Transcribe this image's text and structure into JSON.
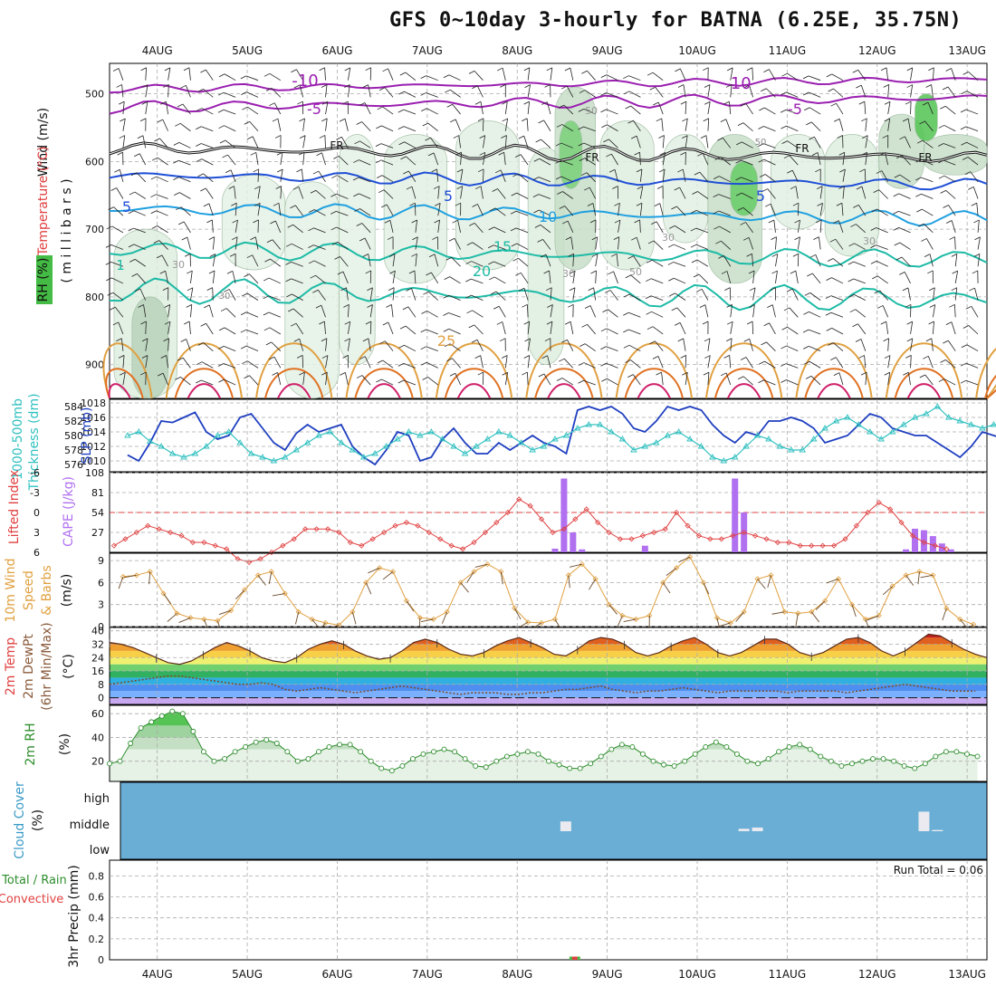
{
  "title": "GFS 0~10day 3-hourly for BATNA (6.25E, 35.75N)",
  "colors": {
    "purple": "#9a1fb0",
    "black": "#111111",
    "blue": "#1f4fd6",
    "lightblue": "#1fa0e0",
    "teal": "#1dbba6",
    "orange": "#e0a040",
    "darkorange": "#e07020",
    "magenta": "#d0206a",
    "cloud": "#6aaed6",
    "rhgreen": "#2c8c2c",
    "cape": "#b070f0",
    "lifted": "#e04040",
    "wind": "#e0a040",
    "slp": "#1f3fc0",
    "thick": "#30c0c0"
  },
  "chart_data": [
    {
      "panel": "upper-air",
      "type": "line",
      "ylabel_parts": [
        "Wind (m/s)",
        "Temperature (°C)",
        "RH (%)"
      ],
      "ylabel_unit": "( m i l l i b a r s )",
      "ylim": [
        950,
        455
      ],
      "yticks": [
        500,
        600,
        700,
        800,
        900
      ],
      "x": [
        "4AUG",
        "5AUG",
        "6AUG",
        "7AUG",
        "8AUG",
        "9AUG",
        "10AUG",
        "11AUG",
        "12AUG",
        "13AUG"
      ],
      "isotherm_labels": [
        "-10",
        "-10",
        "-5",
        "-5",
        "FR",
        "FR",
        "FR",
        "FR",
        "5",
        "5",
        "5",
        "10",
        "15",
        "20",
        "25",
        "1",
        "30",
        "30",
        "30",
        "30",
        "50",
        "50",
        "5"
      ],
      "rh_contour_labels": [
        "30",
        "50"
      ]
    },
    {
      "panel": "slp-thickness",
      "type": "line",
      "ylabel_left": "1000-500mb Thickness (dm)",
      "ylabel_right": "SLP (mb)",
      "thickness_ticks": [
        576,
        578,
        580,
        582,
        584
      ],
      "slp_ticks": [
        1010,
        1012,
        1014,
        1016,
        1018
      ],
      "series": [
        {
          "name": "SLP (mb)",
          "values": [
            1010.8,
            1010.0,
            1012.5,
            1015.5,
            1015.3,
            1016.0,
            1016.7,
            1014.0,
            1013.0,
            1013.5,
            1016.0,
            1016.5,
            1014.5,
            1012.5,
            1011.5,
            1013.8,
            1015.0,
            1014.0,
            1014.5,
            1015.0,
            1012.0,
            1010.5,
            1009.5,
            1011.5,
            1014.0,
            1013.5,
            1010.0,
            1010.5,
            1013.0,
            1014.5,
            1012.5,
            1011.0,
            1011.0,
            1012.5,
            1011.5,
            1012.5,
            1013.5,
            1012.5,
            1012.0,
            1011.0,
            1017.0,
            1017.5,
            1017.0,
            1017.5,
            1016.5,
            1014.5,
            1014.0,
            1015.5,
            1017.5,
            1017.0,
            1017.5,
            1017.0,
            1015.0,
            1013.5,
            1012.5,
            1014.0,
            1013.5,
            1015.5,
            1015.5,
            1016.0,
            1015.5,
            1014.5,
            1012.5,
            1013.0,
            1013.5,
            1015.0,
            1016.5,
            1016.0,
            1014.5,
            1014.0,
            1013.5,
            1013.5,
            1012.5,
            1011.5,
            1010.5,
            1012.0,
            1014.0,
            1013.5,
            1013.0,
            1013.0
          ]
        },
        {
          "name": "1000-500mb Thickness (dm)",
          "values": [
            580.0,
            580.5,
            579.2,
            578.5,
            577.5,
            577.0,
            577.5,
            578.5,
            580.0,
            580.5,
            579.0,
            577.5,
            577.0,
            576.5,
            577.0,
            578.0,
            579.0,
            580.0,
            580.5,
            579.0,
            578.0,
            577.0,
            577.5,
            578.5,
            579.5,
            580.5,
            580.0,
            580.5,
            579.5,
            578.5,
            577.5,
            578.5,
            579.5,
            580.5,
            580.0,
            579.0,
            578.0,
            578.5,
            579.5,
            580.0,
            581.0,
            581.5,
            581.5,
            580.5,
            579.5,
            578.0,
            578.5,
            579.0,
            580.0,
            580.5,
            579.5,
            578.5,
            577.0,
            576.5,
            577.0,
            578.5,
            580.0,
            579.5,
            578.5,
            578.0,
            578.0,
            579.5,
            581.0,
            582.0,
            582.5,
            581.5,
            580.5,
            579.5,
            580.5,
            581.5,
            582.5,
            583.0,
            584.0,
            582.5,
            582.0,
            581.5,
            581.0,
            581.5,
            581.5,
            581.5
          ]
        }
      ]
    },
    {
      "panel": "instability",
      "type": "bar",
      "ylabel_left": "Lifted Index",
      "ylabel_right": "CAPE (J/kg)",
      "lifted_ticks": [
        "-6",
        "-3",
        "0",
        "3",
        "6"
      ],
      "cape_ticks": [
        "27",
        "54",
        "81",
        "108"
      ],
      "series": [
        {
          "name": "Lifted Index",
          "values": [
            5.0,
            4.0,
            3.0,
            2.0,
            2.5,
            3.0,
            3.5,
            4.5,
            4.5,
            5.0,
            5.5,
            7.0,
            7.5,
            7.0,
            6.0,
            5.0,
            4.0,
            2.5,
            2.5,
            2.5,
            3.0,
            4.5,
            5.0,
            4.0,
            3.0,
            2.0,
            1.5,
            2.0,
            3.0,
            4.0,
            5.0,
            5.5,
            4.5,
            3.0,
            1.5,
            0.0,
            -2.0,
            -1.0,
            1.0,
            3.0,
            2.5,
            1.0,
            -0.5,
            1.5,
            3.0,
            4.0,
            4.0,
            3.5,
            3.0,
            2.5,
            0.0,
            2.0,
            3.5,
            4.0,
            4.0,
            3.5,
            3.0,
            3.5,
            4.0,
            4.5,
            4.5,
            5.0,
            5.0,
            5.0,
            5.0,
            4.0,
            2.0,
            0.0,
            -1.5,
            -0.5,
            1.5,
            3.5,
            4.5,
            5.0,
            5.5
          ]
        },
        {
          "name": "CAPE (J/kg)",
          "bars": [
            [
              8.5,
              5
            ],
            [
              8.6,
              100
            ],
            [
              8.7,
              27
            ],
            [
              8.8,
              4
            ],
            [
              9.5,
              9
            ],
            [
              10.5,
              100
            ],
            [
              10.6,
              54
            ],
            [
              12.4,
              4
            ],
            [
              12.5,
              32
            ],
            [
              12.6,
              30
            ],
            [
              12.7,
              22
            ],
            [
              12.8,
              12
            ],
            [
              12.9,
              4
            ]
          ]
        }
      ],
      "reference_line": 0
    },
    {
      "panel": "wind-10m",
      "type": "line",
      "ylabel": "10m Wind Speed & Barbs (m/s)",
      "yticks": [
        0,
        3,
        6,
        9
      ],
      "values": [
        6.8,
        7.0,
        7.5,
        4.5,
        1.8,
        1.2,
        1.0,
        0.8,
        2.2,
        5.0,
        7.0,
        7.5,
        4.5,
        2.0,
        1.0,
        0.5,
        0.2,
        2.0,
        6.0,
        8.0,
        7.5,
        3.5,
        1.2,
        1.0,
        2.0,
        6.0,
        7.5,
        8.5,
        7.5,
        2.5,
        0.6,
        0.5,
        1.0,
        7.0,
        8.5,
        6.5,
        3.0,
        1.5,
        1.0,
        1.5,
        6.0,
        8.0,
        9.5,
        6.0,
        1.2,
        0.5,
        2.0,
        6.5,
        7.0,
        2.0,
        1.8,
        2.0,
        3.5,
        6.5,
        3.0,
        1.0,
        1.5,
        5.5,
        7.0,
        7.5,
        7.0,
        2.5,
        1.0,
        0.3
      ]
    },
    {
      "panel": "temperature",
      "type": "area",
      "ylabel": "2m Temp / 2m DewPt (6hr Min/Max) (°C)",
      "yticks": [
        0,
        8,
        16,
        24,
        32,
        40
      ],
      "series": [
        {
          "name": "2m Temp",
          "values": [
            33,
            32,
            30,
            27,
            24,
            21,
            20,
            22,
            26,
            30,
            33,
            31,
            28,
            24,
            22,
            21,
            24,
            29,
            32,
            34,
            32,
            28,
            25,
            23,
            24,
            28,
            33,
            35,
            33,
            29,
            26,
            25,
            27,
            31,
            34,
            36,
            33,
            30,
            26,
            25,
            29,
            34,
            36,
            35,
            32,
            27,
            25,
            27,
            31,
            34,
            36,
            32,
            27,
            25,
            27,
            31,
            35,
            35,
            32,
            27,
            25,
            27,
            31,
            35,
            36,
            33,
            28,
            25,
            28,
            33,
            38,
            37,
            33,
            29,
            26,
            24
          ]
        },
        {
          "name": "2m DewPt",
          "values": [
            8,
            9,
            10,
            11,
            12,
            13,
            13,
            12,
            11,
            10,
            9,
            8,
            8,
            9,
            8,
            5,
            4,
            5,
            6,
            5,
            4,
            3,
            4,
            5,
            6,
            7,
            6,
            5,
            4,
            3,
            2,
            3,
            3,
            3,
            2,
            2,
            3,
            3,
            4,
            5,
            5,
            6,
            7,
            5,
            4,
            3,
            4,
            4,
            5,
            6,
            5,
            4,
            3,
            4,
            4,
            4,
            4,
            4,
            3,
            4,
            4,
            4,
            4,
            3,
            4,
            5,
            6,
            7,
            8,
            7,
            6,
            5,
            4,
            4,
            4
          ]
        }
      ]
    },
    {
      "panel": "rh-2m",
      "type": "area",
      "ylabel": "2m RH (%)",
      "yticks": [
        20,
        40,
        60
      ],
      "values": [
        18,
        20,
        35,
        48,
        53,
        58,
        62,
        60,
        45,
        28,
        20,
        22,
        28,
        32,
        36,
        38,
        35,
        28,
        20,
        22,
        28,
        32,
        34,
        34,
        28,
        20,
        14,
        12,
        16,
        22,
        26,
        28,
        30,
        28,
        22,
        16,
        15,
        20,
        24,
        26,
        28,
        26,
        20,
        17,
        14,
        14,
        18,
        24,
        30,
        34,
        32,
        26,
        20,
        17,
        16,
        20,
        26,
        32,
        36,
        32,
        26,
        20,
        18,
        22,
        28,
        32,
        34,
        30,
        24,
        20,
        16,
        18,
        20,
        22,
        22,
        20,
        16,
        14,
        18,
        24,
        28,
        28,
        26,
        24
      ]
    },
    {
      "panel": "cloud-cover",
      "type": "bar",
      "ylabel": "Cloud Cover (%)",
      "levels": [
        "high",
        "middle",
        "low"
      ],
      "bars": [
        {
          "t": 8.62,
          "level": "middle",
          "value": 40
        },
        {
          "t": 10.6,
          "level": "middle",
          "value": 10
        },
        {
          "t": 10.75,
          "level": "middle",
          "value": 15
        },
        {
          "t": 12.6,
          "level": "middle",
          "value": 80
        },
        {
          "t": 12.75,
          "level": "middle",
          "value": 5
        }
      ]
    },
    {
      "panel": "precip",
      "type": "bar",
      "ylabel_parts": [
        "Total / Rain",
        "Convective"
      ],
      "ylabel_unit": "3hr Precip (mm)",
      "yticks": [
        "0",
        "0.2",
        "0.4",
        "0.6",
        "0.8"
      ],
      "run_total_label": "Run Total = 0.06",
      "bars": [
        {
          "t": 8.72,
          "total": 0.03,
          "convective": 0.03
        }
      ]
    }
  ]
}
